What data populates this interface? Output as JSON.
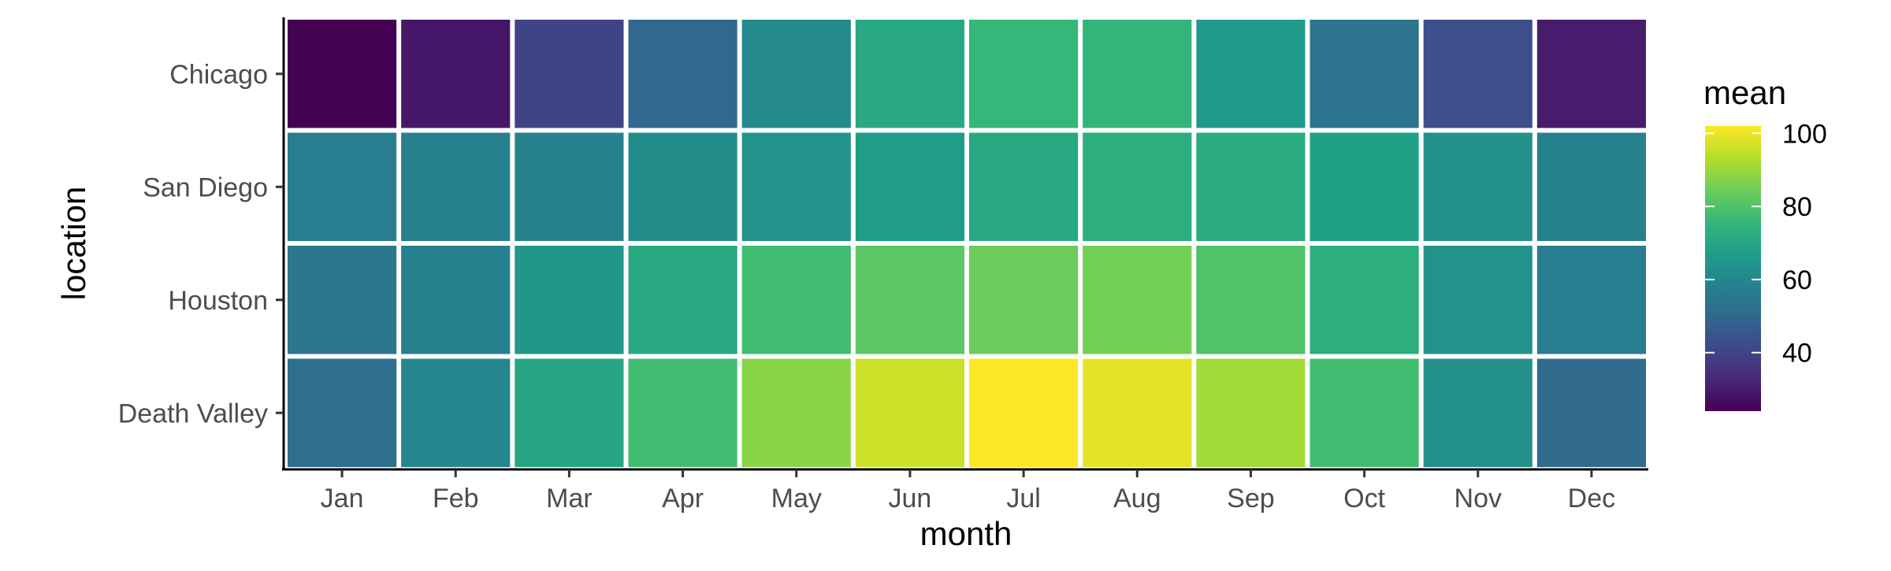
{
  "chart_data": {
    "type": "heatmap",
    "title": "",
    "xlabel": "month",
    "ylabel": "location",
    "categories": [
      "Jan",
      "Feb",
      "Mar",
      "Apr",
      "May",
      "Jun",
      "Jul",
      "Aug",
      "Sep",
      "Oct",
      "Nov",
      "Dec"
    ],
    "y_categories": [
      "Chicago",
      "San Diego",
      "Houston",
      "Death Valley"
    ],
    "series": [
      {
        "name": "Chicago",
        "values": [
          24,
          29,
          40,
          50,
          61,
          71,
          76,
          75,
          66,
          54,
          43,
          30
        ]
      },
      {
        "name": "San Diego",
        "values": [
          57,
          58,
          59,
          62,
          64,
          67,
          71,
          73,
          72,
          68,
          63,
          58
        ]
      },
      {
        "name": "Houston",
        "values": [
          55,
          58,
          65,
          71,
          78,
          82,
          84,
          85,
          80,
          73,
          64,
          57
        ]
      },
      {
        "name": "Death Valley",
        "values": [
          52,
          60,
          70,
          78,
          88,
          96,
          102,
          99,
          91,
          78,
          63,
          51
        ]
      }
    ],
    "color_scale": {
      "title": "mean",
      "ticks": [
        40,
        60,
        80,
        100
      ],
      "range": [
        24,
        102
      ],
      "palette": "viridis"
    },
    "grid": false,
    "legend_position": "right"
  }
}
